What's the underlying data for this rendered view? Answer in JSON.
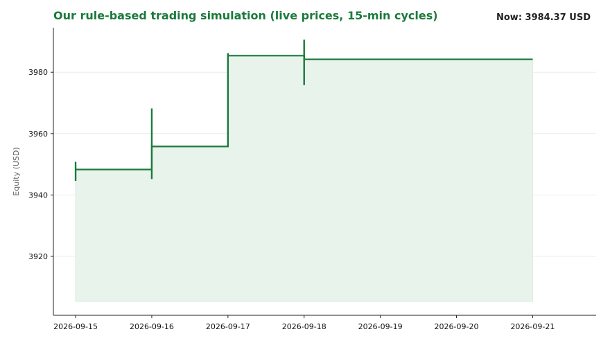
{
  "header": {
    "title": "Our rule-based trading simulation (live prices, 15-min cycles)",
    "now_label": "Now: 3984.37 USD"
  },
  "colors": {
    "accent": "#1a7a3c",
    "fill": "#e8f3ec",
    "grid": "#ececec"
  },
  "chart_data": {
    "type": "line",
    "title": "Our rule-based trading simulation (live prices, 15-min cycles)",
    "xlabel": "",
    "ylabel": "Equity (USD)",
    "step": "post",
    "grid": "horizontal",
    "x": [
      "2026-09-15",
      "2026-09-16",
      "2026-09-17",
      "2026-09-18",
      "2026-09-21"
    ],
    "y": [
      3948.3,
      3955.8,
      3985.4,
      3984.2,
      3984.2
    ],
    "range_bars": [
      {
        "x": "2026-09-15",
        "low": 3944.6,
        "high": 3950.8
      },
      {
        "x": "2026-09-16",
        "low": 3945.2,
        "high": 3968.2
      },
      {
        "x": "2026-09-17",
        "low": 3955.8,
        "high": 3986.2
      },
      {
        "x": "2026-09-18",
        "low": 3975.8,
        "high": 3990.6
      }
    ],
    "fill_baseline": 3905.3,
    "xlim": [
      "2026-09-14 17:00",
      "2026-09-21 20:00"
    ],
    "ylim": [
      3900.8,
      3994.5
    ],
    "x_ticks": [
      "2026-09-15",
      "2026-09-16",
      "2026-09-17",
      "2026-09-18",
      "2026-09-19",
      "2026-09-20",
      "2026-09-21"
    ],
    "y_ticks": [
      3920,
      3940,
      3960,
      3980
    ]
  }
}
